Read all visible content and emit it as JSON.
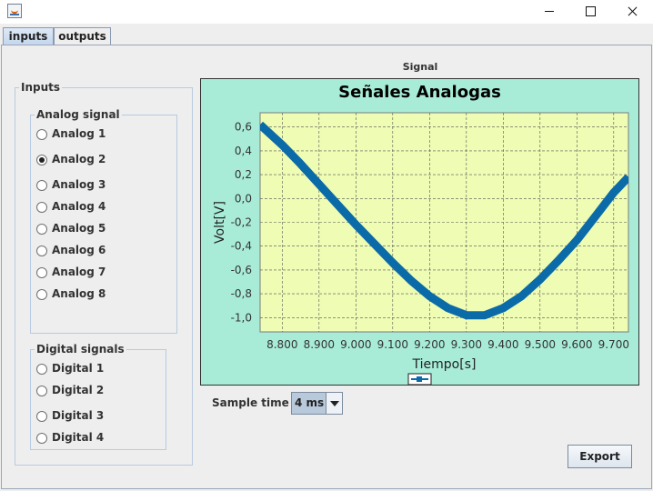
{
  "window": {
    "title": ""
  },
  "tabs": [
    {
      "label": "inputs",
      "active": true
    },
    {
      "label": "outputs",
      "active": false
    }
  ],
  "inputs_panel": {
    "title": "Inputs",
    "analog": {
      "title": "Analog signal",
      "options": [
        "Analog 1",
        "Analog 2",
        "Analog 3",
        "Analog 4",
        "Analog 5",
        "Analog 6",
        "Analog 7",
        "Analog 8"
      ],
      "selected": "Analog 2"
    },
    "digital": {
      "title": "Digital signals",
      "options": [
        "Digital 1",
        "Digital 2",
        "Digital 3",
        "Digital 4"
      ]
    }
  },
  "signal_panel": {
    "title": "Signal"
  },
  "chart_data": {
    "type": "line",
    "title": "Señales Analogas",
    "xlabel": "Tiempo[s]",
    "ylabel": "Volt[V]",
    "xlim": [
      8.74,
      9.74
    ],
    "ylim": [
      -1.12,
      0.72
    ],
    "x_ticks": [
      8.8,
      8.9,
      9.0,
      9.1,
      9.2,
      9.3,
      9.4,
      9.5,
      9.6,
      9.7
    ],
    "x_tick_labels": [
      "8.800",
      "8.900",
      "9.000",
      "9.100",
      "9.200",
      "9.300",
      "9.400",
      "9.500",
      "9.600",
      "9.700"
    ],
    "y_ticks": [
      0.6,
      0.4,
      0.2,
      0.0,
      -0.2,
      -0.4,
      -0.6,
      -0.8,
      -1.0
    ],
    "y_tick_labels": [
      "0,6",
      "0,4",
      "0,2",
      "0,0",
      "-0,2",
      "-0,4",
      "-0,6",
      "-0,8",
      "-1,0"
    ],
    "grid": true,
    "legend": "bottom-center",
    "series": [
      {
        "color": "#0b6aa8",
        "x": [
          8.74,
          8.8,
          8.85,
          8.9,
          8.95,
          9.0,
          9.05,
          9.1,
          9.15,
          9.2,
          9.25,
          9.3,
          9.35,
          9.4,
          9.45,
          9.5,
          9.55,
          9.6,
          9.65,
          9.7,
          9.74
        ],
        "y": [
          0.62,
          0.45,
          0.29,
          0.12,
          -0.05,
          -0.22,
          -0.38,
          -0.54,
          -0.69,
          -0.82,
          -0.92,
          -0.98,
          -0.98,
          -0.92,
          -0.82,
          -0.68,
          -0.52,
          -0.35,
          -0.15,
          0.05,
          0.18
        ]
      }
    ]
  },
  "sample_time": {
    "label": "Sample time",
    "value": "4 ms"
  },
  "export": {
    "label": "Export"
  }
}
